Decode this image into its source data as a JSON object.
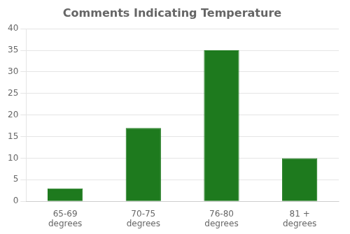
{
  "chart_data": {
    "type": "bar",
    "title": "Comments Indicating Temperature",
    "categories": [
      "65-69\ndegrees",
      "70-75\ndegrees",
      "76-80\ndegrees",
      "81 +\ndegrees"
    ],
    "values": [
      3,
      17,
      35,
      10
    ],
    "color": "#1e7a1e",
    "ylim": [
      0,
      40
    ],
    "yticks": [
      0,
      5,
      10,
      15,
      20,
      25,
      30,
      35,
      40
    ],
    "grid": true
  }
}
